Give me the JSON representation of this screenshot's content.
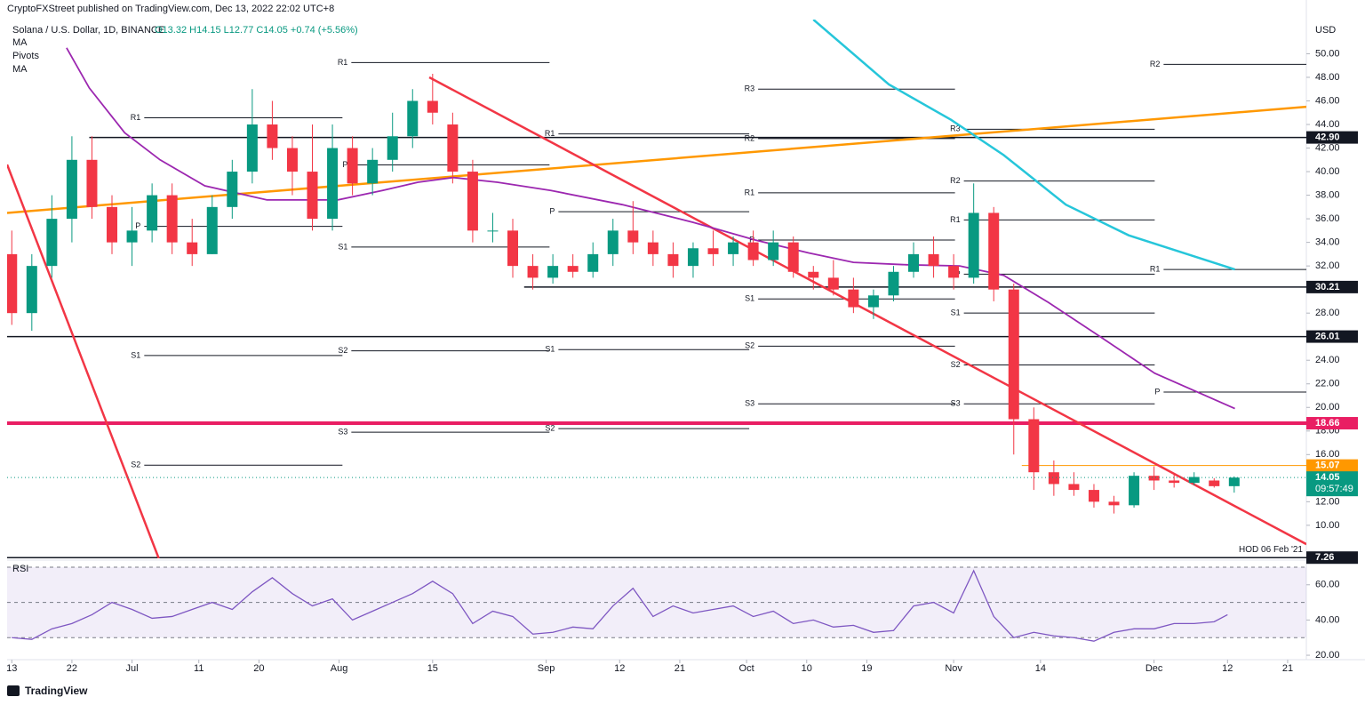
{
  "header": {
    "publisher": "CryptoFXStreet published on TradingView.com, Dec 13, 2022 22:02 UTC+8"
  },
  "footer": {
    "brand": "TradingView"
  },
  "chart_data": [
    {
      "type": "candlestick",
      "title": "Solana / U.S. Dollar, 1D, BINANCE",
      "ohlc": "O13.32 H14.15 L12.77 C14.05 +0.74 (+5.56%)",
      "indicators": [
        "MA",
        "Pivots",
        "MA"
      ],
      "currency": "USD",
      "up_color": "#089981",
      "down_color": "#f23645",
      "xlim": [
        -0.7,
        193.8
      ],
      "ylim": [
        7.2,
        52.9
      ],
      "xticks": [
        {
          "value": 0,
          "label": "13"
        },
        {
          "value": 9,
          "label": "22"
        },
        {
          "value": 18,
          "label": "Jul"
        },
        {
          "value": 28,
          "label": "11"
        },
        {
          "value": 37,
          "label": "20"
        },
        {
          "value": 49,
          "label": "Aug"
        },
        {
          "value": 63,
          "label": "15"
        },
        {
          "value": 80,
          "label": "Sep"
        },
        {
          "value": 91,
          "label": "12"
        },
        {
          "value": 100,
          "label": "21"
        },
        {
          "value": 110,
          "label": "Oct"
        },
        {
          "value": 119,
          "label": "10"
        },
        {
          "value": 128,
          "label": "19"
        },
        {
          "value": 141,
          "label": "Nov"
        },
        {
          "value": 154,
          "label": "14"
        },
        {
          "value": 171,
          "label": "Dec"
        },
        {
          "value": 182,
          "label": "12"
        },
        {
          "value": 191,
          "label": "21"
        }
      ],
      "yticks": [
        {
          "value": 10,
          "label": "10.00"
        },
        {
          "value": 12,
          "label": "12.00"
        },
        {
          "value": 14,
          "label": "14.00"
        },
        {
          "value": 16,
          "label": "16.00"
        },
        {
          "value": 18,
          "label": "18.00"
        },
        {
          "value": 20,
          "label": "20.00"
        },
        {
          "value": 22,
          "label": "22.00"
        },
        {
          "value": 24,
          "label": "24.00"
        },
        {
          "value": 26,
          "label": "26.00"
        },
        {
          "value": 28,
          "label": "28.00"
        },
        {
          "value": 30,
          "label": "30.00"
        },
        {
          "value": 32,
          "label": "32.00"
        },
        {
          "value": 34,
          "label": "34.00"
        },
        {
          "value": 36,
          "label": "36.00"
        },
        {
          "value": 38,
          "label": "38.00"
        },
        {
          "value": 40,
          "label": "40.00"
        },
        {
          "value": 42,
          "label": "42.00"
        },
        {
          "value": 44,
          "label": "44.00"
        },
        {
          "value": 46,
          "label": "46.00"
        },
        {
          "value": 48,
          "label": "48.00"
        },
        {
          "value": 50,
          "label": "50.00"
        }
      ],
      "candles": {
        "x": [
          0,
          3,
          6,
          9,
          12,
          15,
          18,
          21,
          24,
          27,
          30,
          33,
          36,
          39,
          42,
          45,
          48,
          51,
          54,
          57,
          60,
          63,
          66,
          69,
          72,
          75,
          78,
          81,
          84,
          87,
          90,
          93,
          96,
          99,
          102,
          105,
          108,
          111,
          114,
          117,
          120,
          123,
          126,
          129,
          132,
          135,
          138,
          141,
          144,
          147,
          150,
          153,
          156,
          159,
          162,
          165,
          168,
          171,
          174,
          177,
          180,
          183
        ],
        "open": [
          33,
          28,
          32,
          36,
          41,
          37,
          34,
          35,
          38,
          34,
          33,
          37,
          40,
          44,
          42,
          40,
          36,
          42,
          39,
          41,
          43,
          46,
          44,
          40,
          35,
          35,
          32,
          31,
          32,
          31.5,
          33,
          35,
          34,
          33,
          32,
          33.5,
          33,
          34,
          32.5,
          34,
          31.5,
          31,
          30,
          28.5,
          29.5,
          31.5,
          33,
          32,
          31,
          36.5,
          30,
          19,
          14.5,
          13.5,
          13,
          12,
          11.7,
          14.2,
          13.8,
          13.6,
          13.8,
          13.32
        ],
        "high": [
          35,
          33,
          38,
          43,
          43,
          38,
          37,
          39,
          39,
          36,
          38,
          41,
          47,
          46,
          43,
          44,
          44,
          43,
          42,
          45,
          47,
          48.3,
          45,
          41,
          36.5,
          36,
          33,
          33,
          33,
          34,
          36,
          37.5,
          35,
          34,
          34,
          35,
          34.5,
          35,
          35,
          34.5,
          32,
          32.5,
          31,
          30,
          32,
          34,
          34.5,
          33,
          39,
          37,
          30.5,
          20,
          15.5,
          14.5,
          13.5,
          12.5,
          14.5,
          15,
          14.3,
          14.5,
          14,
          14.15
        ],
        "low": [
          27,
          26.5,
          31,
          34,
          36,
          33,
          32,
          34,
          33,
          32,
          33,
          36,
          39,
          41,
          38,
          35,
          35,
          38,
          38,
          40,
          42,
          44,
          39,
          34,
          34,
          31,
          30,
          30.5,
          31,
          31,
          32,
          33,
          32,
          31,
          31,
          32,
          32,
          32,
          32,
          31,
          30,
          29.5,
          28,
          27.5,
          29,
          31,
          31,
          30,
          30.5,
          29,
          16,
          13,
          12.5,
          12.5,
          11.5,
          11,
          11.5,
          13,
          13.2,
          13.4,
          13.2,
          12.77
        ],
        "close": [
          28,
          32,
          36,
          41,
          37,
          34,
          35,
          38,
          34,
          33,
          37,
          40,
          44,
          42,
          40,
          36,
          42,
          39,
          41,
          43,
          46,
          45,
          40,
          35,
          35,
          32,
          31,
          32,
          31.5,
          33,
          35,
          34,
          33,
          32,
          33.5,
          33,
          34,
          32.5,
          34,
          31.5,
          31,
          30,
          28.5,
          29.5,
          31.5,
          33,
          32,
          31,
          36.5,
          30,
          19,
          14.5,
          13.5,
          13,
          12,
          11.7,
          14.2,
          13.8,
          13.6,
          14.1,
          13.32,
          14.05
        ]
      },
      "series": [
        {
          "name": "MA",
          "color": "#9c27b0",
          "x": [
            8.2,
            11.6,
            16.9,
            22.2,
            28.9,
            38.2,
            48.8,
            55.5,
            60.8,
            66.1,
            72.7,
            80.7,
            91.4,
            102,
            111.3,
            119.3,
            126,
            134,
            141.9,
            148.5,
            155.2,
            163.2,
            171.1,
            183.1
          ],
          "values": [
            50.5,
            47.1,
            43.3,
            41.0,
            38.8,
            37.6,
            37.6,
            38.4,
            39.1,
            39.5,
            39.1,
            38.4,
            37.2,
            35.7,
            34.2,
            33.1,
            32.3,
            32.1,
            32.0,
            31.2,
            28.9,
            25.9,
            22.9,
            19.9
          ]
        },
        {
          "name": "MA",
          "color": "#26c6da",
          "x": [
            120,
            131.3,
            140.6,
            148.5,
            157.8,
            167.2,
            183.1
          ],
          "values": [
            52.9,
            47.4,
            44.4,
            41.4,
            37.2,
            34.6,
            31.7
          ]
        }
      ],
      "trendlines": [
        {
          "color": "#ff9800",
          "x": [
            -0.7,
            193.8
          ],
          "values": [
            36.5,
            45.5
          ]
        },
        {
          "color": "#f23645",
          "x": [
            62.5,
            193.8
          ],
          "values": [
            48.0,
            8.4
          ]
        },
        {
          "color": "#f23645",
          "x": [
            -0.7,
            22
          ],
          "values": [
            40.6,
            7.2
          ]
        }
      ],
      "pivots": [
        {
          "label": "R1",
          "value": 44.57,
          "x": [
            18.5,
            49.5
          ]
        },
        {
          "label": "P",
          "value": 35.36,
          "x": [
            18.5,
            49.5
          ]
        },
        {
          "label": "S1",
          "value": 24.4,
          "x": [
            18.5,
            49.5
          ]
        },
        {
          "label": "S2",
          "value": 15.1,
          "x": [
            18.5,
            49.5
          ]
        },
        {
          "label": "R1",
          "value": 49.25,
          "x": [
            49.5,
            80.5
          ]
        },
        {
          "label": "P",
          "value": 40.57,
          "x": [
            49.5,
            80.5
          ]
        },
        {
          "label": "S1",
          "value": 33.6,
          "x": [
            49.5,
            80.5
          ]
        },
        {
          "label": "S2",
          "value": 24.8,
          "x": [
            49.5,
            80.5
          ]
        },
        {
          "label": "S3",
          "value": 17.9,
          "x": [
            49.5,
            80.5
          ]
        },
        {
          "label": "R1",
          "value": 43.2,
          "x": [
            80.5,
            110.4
          ]
        },
        {
          "label": "P",
          "value": 36.6,
          "x": [
            80.5,
            110.4
          ]
        },
        {
          "label": "S1",
          "value": 24.9,
          "x": [
            80.5,
            110.4
          ]
        },
        {
          "label": "S2",
          "value": 18.2,
          "x": [
            80.5,
            110.4
          ]
        },
        {
          "label": "R3",
          "value": 47,
          "x": [
            110.4,
            141.2
          ]
        },
        {
          "label": "R2",
          "value": 42.8,
          "x": [
            110.4,
            141.2
          ]
        },
        {
          "label": "R1",
          "value": 38.2,
          "x": [
            110.4,
            141.2
          ]
        },
        {
          "label": "P",
          "value": 34.2,
          "x": [
            110.4,
            141.2
          ]
        },
        {
          "label": "S1",
          "value": 29.2,
          "x": [
            110.4,
            141.2
          ]
        },
        {
          "label": "S2",
          "value": 25.2,
          "x": [
            110.4,
            141.2
          ]
        },
        {
          "label": "S3",
          "value": 20.3,
          "x": [
            110.4,
            141.2
          ]
        },
        {
          "label": "R3",
          "value": 43.6,
          "x": [
            141.2,
            171.1
          ]
        },
        {
          "label": "R2",
          "value": 39.2,
          "x": [
            141.2,
            171.1
          ]
        },
        {
          "label": "R1",
          "value": 35.9,
          "x": [
            141.2,
            171.1
          ]
        },
        {
          "label": "P",
          "value": 31.3,
          "x": [
            141.2,
            171.1
          ]
        },
        {
          "label": "S1",
          "value": 28.0,
          "x": [
            141.2,
            171.1
          ]
        },
        {
          "label": "S2",
          "value": 23.6,
          "x": [
            141.2,
            171.1
          ]
        },
        {
          "label": "S3",
          "value": 20.3,
          "x": [
            141.2,
            171.1
          ]
        },
        {
          "label": "R2",
          "value": 49.1,
          "x": [
            171.1,
            193.8
          ]
        },
        {
          "label": "R1",
          "value": 31.7,
          "x": [
            171.1,
            193.8
          ]
        },
        {
          "label": "P",
          "value": 21.3,
          "x": [
            171.1,
            193.8
          ]
        }
      ],
      "levels": [
        {
          "value": 42.9,
          "label": "42.90",
          "from": 11.6,
          "color": "#131722",
          "box": "#131722",
          "width": 1.5
        },
        {
          "value": 30.21,
          "label": "30.21",
          "from": 76.7,
          "color": "#131722",
          "box": "#131722",
          "width": 1.5
        },
        {
          "value": 26.01,
          "label": "26.01",
          "from": -0.7,
          "color": "#131722",
          "box": "#131722",
          "width": 1.5
        },
        {
          "value": 18.66,
          "label": "18.66",
          "from": -0.7,
          "color": "#e91e63",
          "box": "#e91e63",
          "width": 4
        },
        {
          "value": 15.07,
          "label": "15.07",
          "from": 151.2,
          "color": "#ff9800",
          "box": "#ff9800",
          "width": 1
        },
        {
          "value": 7.26,
          "label": "7.26",
          "from": -0.7,
          "color": "#131722",
          "box": "#131722",
          "width": 1.5,
          "note": "HOD 06 Feb '21"
        }
      ],
      "last": {
        "value": 14.05,
        "label": "14.05",
        "countdown": "09:57:49",
        "color": "#089981"
      }
    },
    {
      "type": "line",
      "title": "RSI",
      "color": "#7e57c2",
      "xlim": [
        -0.7,
        193.8
      ],
      "ylim": [
        17.5,
        73
      ],
      "yticks": [
        {
          "value": 20,
          "label": "20.00"
        },
        {
          "value": 40,
          "label": "40.00"
        },
        {
          "value": 60,
          "label": "60.00"
        }
      ],
      "bands": [
        30,
        50,
        70
      ],
      "x": [
        0,
        3,
        6,
        9,
        12,
        15,
        18,
        21,
        24,
        27,
        30,
        33,
        36,
        39,
        42,
        45,
        48,
        51,
        54,
        57,
        60,
        63,
        66,
        69,
        72,
        75,
        78,
        81,
        84,
        87,
        90,
        93,
        96,
        99,
        102,
        105,
        108,
        111,
        114,
        117,
        120,
        123,
        126,
        129,
        132,
        135,
        138,
        141,
        144,
        147,
        150,
        153,
        156,
        159,
        162,
        165,
        168,
        171,
        174,
        177,
        180,
        182
      ],
      "values": [
        30,
        29,
        35,
        38,
        43,
        50,
        46,
        41,
        42,
        46,
        50,
        46,
        56,
        64,
        55,
        48,
        52,
        40,
        45,
        50,
        55,
        62,
        55,
        38,
        45,
        42,
        32,
        33,
        36,
        35,
        48,
        58,
        42,
        48,
        44,
        46,
        48,
        42,
        45,
        38,
        40,
        36,
        37,
        33,
        34,
        48,
        50,
        44,
        68,
        42,
        30,
        33,
        31,
        30,
        28,
        33,
        35,
        35,
        38,
        38,
        39,
        43
      ]
    }
  ]
}
